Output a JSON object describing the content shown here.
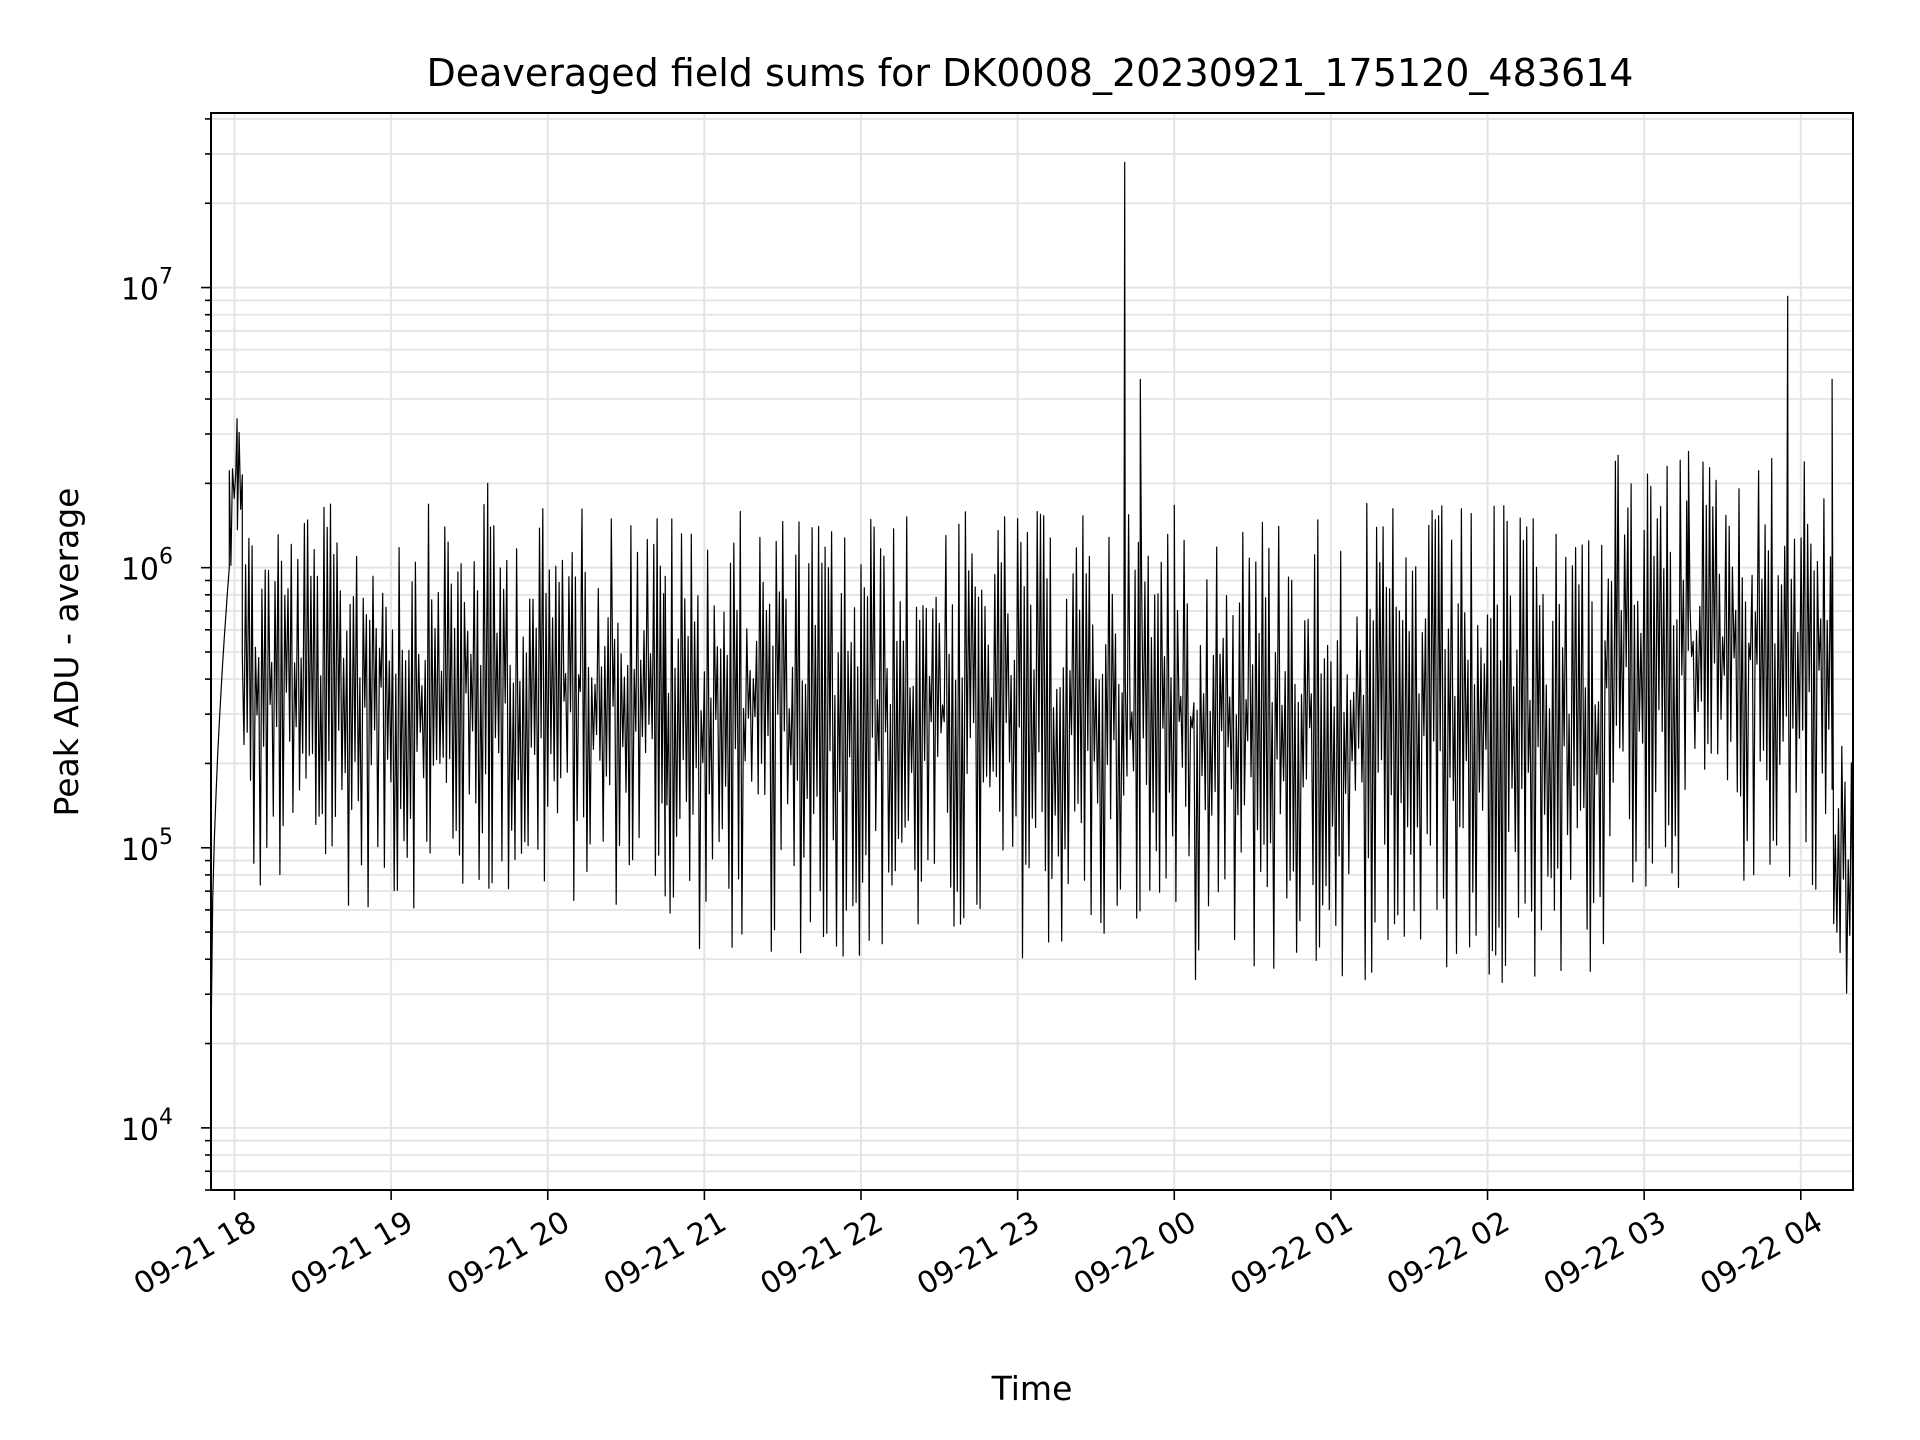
{
  "chart_data": {
    "type": "line",
    "title": "Deaveraged field sums for DK0008_20230921_175120_483614",
    "xlabel": "Time",
    "ylabel": "Peak ADU - average",
    "yscale": "log",
    "ylim": [
      6000,
      42000000
    ],
    "xlim": [
      "2023-09-21 17:51",
      "2023-09-22 04:20"
    ],
    "grid": true,
    "line_color": "#000000",
    "x_ticks": [
      "09-21 18",
      "09-21 19",
      "09-21 20",
      "09-21 21",
      "09-21 22",
      "09-21 23",
      "09-22 00",
      "09-22 01",
      "09-22 02",
      "09-22 03",
      "09-22 04"
    ],
    "y_ticks": [
      {
        "value": 10000,
        "base": "10",
        "exp": "4"
      },
      {
        "value": 100000,
        "base": "10",
        "exp": "5"
      },
      {
        "value": 1000000,
        "base": "10",
        "exp": "6"
      },
      {
        "value": 10000000,
        "base": "10",
        "exp": "7"
      }
    ],
    "series": [
      {
        "segments": [
          {
            "start": "2023-09-21 17:51",
            "end": "2023-09-21 17:58",
            "low": 1000000,
            "high": 1000000,
            "ramp_from": 20000
          },
          {
            "start": "2023-09-21 17:58",
            "end": "2023-09-21 18:03",
            "low": 800000,
            "high": 3400000
          },
          {
            "start": "2023-09-21 18:03",
            "end": "2023-09-21 20:45",
            "low": 60000,
            "high": 1700000
          },
          {
            "start": "2023-09-21 20:45",
            "end": "2023-09-22 00:00",
            "low": 40000,
            "high": 1600000
          },
          {
            "start": "2023-09-22 00:00",
            "end": "2023-09-22 02:45",
            "low": 33000,
            "high": 1700000
          },
          {
            "start": "2023-09-22 02:45",
            "end": "2023-09-22 04:12",
            "low": 70000,
            "high": 2600000
          },
          {
            "start": "2023-09-22 04:12",
            "end": "2023-09-22 04:20",
            "low": 23000,
            "high": 250000
          }
        ],
        "spikes": [
          {
            "time": "2023-09-21 18:01",
            "value": 3400000
          },
          {
            "time": "2023-09-21 19:37",
            "value": 2000000
          },
          {
            "time": "2023-09-21 23:41",
            "value": 28000000
          },
          {
            "time": "2023-09-21 23:47",
            "value": 4700000
          },
          {
            "time": "2023-09-22 02:49",
            "value": 2400000
          },
          {
            "time": "2023-09-22 03:17",
            "value": 2600000
          },
          {
            "time": "2023-09-22 03:55",
            "value": 9300000
          },
          {
            "time": "2023-09-22 04:12",
            "value": 4700000
          }
        ]
      }
    ]
  }
}
